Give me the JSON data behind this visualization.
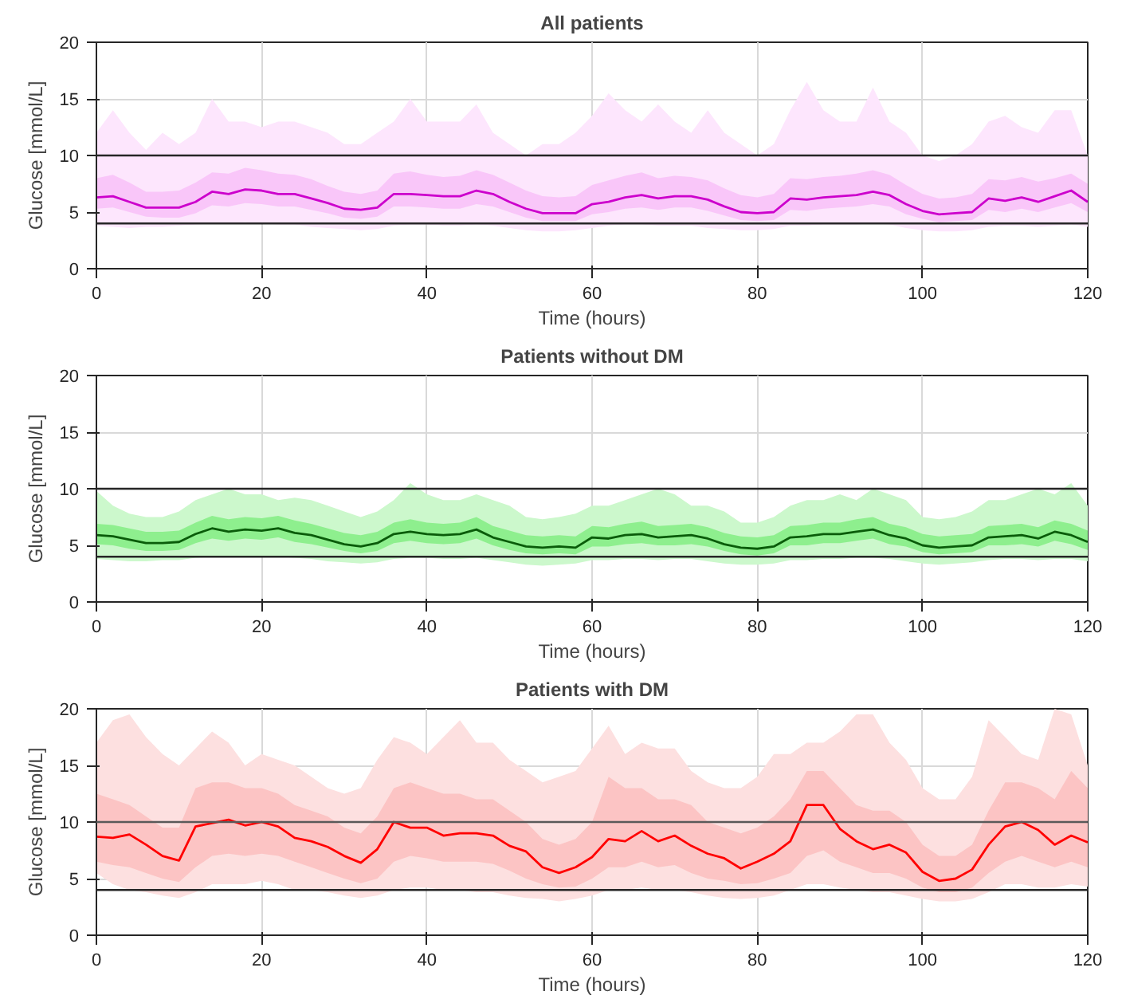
{
  "chart_data": [
    {
      "type": "line",
      "title": "All patients",
      "xlabel": "Time (hours)",
      "ylabel": "Glucose [mmol/L]",
      "xlim": [
        0,
        120
      ],
      "ylim": [
        0,
        20
      ],
      "xticks": [
        0,
        20,
        40,
        60,
        80,
        100,
        120
      ],
      "yticks": [
        0,
        5,
        10,
        15,
        20
      ],
      "grid": true,
      "x": [
        0,
        2,
        4,
        6,
        8,
        10,
        12,
        14,
        16,
        18,
        20,
        22,
        24,
        26,
        28,
        30,
        32,
        34,
        36,
        38,
        40,
        42,
        44,
        46,
        48,
        50,
        52,
        54,
        56,
        58,
        60,
        62,
        64,
        66,
        68,
        70,
        72,
        74,
        76,
        78,
        80,
        82,
        84,
        86,
        88,
        90,
        92,
        94,
        96,
        98,
        100,
        102,
        104,
        106,
        108,
        110,
        112,
        114,
        116,
        118,
        120
      ],
      "ref_lines": [
        {
          "axis": "y",
          "value": 4,
          "color": "#262626"
        },
        {
          "axis": "y",
          "value": 10,
          "color": "#262626"
        }
      ],
      "series": [
        {
          "color": "#fde6fd",
          "values": [
            null,
            null,
            null,
            null,
            null,
            null,
            null,
            null,
            null,
            null,
            null,
            null,
            null,
            null,
            null,
            null,
            null,
            null,
            null,
            null,
            null,
            null,
            null,
            null,
            null,
            null,
            null,
            null,
            null,
            null,
            null,
            null,
            null,
            null,
            null,
            null,
            null,
            null,
            null,
            null,
            null,
            null,
            null,
            null,
            null,
            null,
            null,
            null,
            null,
            null,
            null,
            null,
            null,
            null,
            null,
            null,
            null,
            null,
            null,
            null,
            null
          ],
          "lower": [
            3.8,
            3.7,
            3.6,
            3.7,
            3.7,
            3.8,
            3.9,
            4.0,
            4.0,
            4.1,
            4.0,
            3.9,
            3.9,
            3.7,
            3.6,
            3.5,
            3.4,
            3.5,
            3.8,
            3.9,
            3.9,
            3.8,
            3.8,
            3.9,
            3.8,
            3.6,
            3.4,
            3.3,
            3.3,
            3.4,
            3.6,
            3.8,
            3.9,
            3.9,
            3.8,
            3.8,
            3.8,
            3.6,
            3.5,
            3.4,
            3.4,
            3.5,
            3.8,
            3.8,
            3.9,
            3.9,
            3.9,
            4.0,
            3.9,
            3.6,
            3.4,
            3.3,
            3.3,
            3.4,
            3.7,
            3.8,
            3.8,
            3.7,
            3.8,
            3.9,
            3.7
          ],
          "upper": [
            12,
            14,
            12,
            10.5,
            12,
            11,
            12,
            15,
            13,
            13,
            12.5,
            13,
            13,
            12.5,
            12,
            11,
            11,
            12,
            13,
            15,
            13,
            13,
            13,
            14.5,
            12,
            11,
            10,
            11,
            11,
            12,
            13.5,
            15.5,
            14,
            13,
            14.5,
            13,
            12,
            14,
            12,
            11,
            10,
            11,
            14,
            16.5,
            14,
            13,
            13,
            16,
            13,
            12,
            10,
            9.5,
            10,
            11,
            13,
            13.5,
            12.5,
            12,
            14,
            14,
            10
          ]
        },
        {
          "color": "#f9c6f9",
          "values": [
            null,
            null,
            null,
            null,
            null,
            null,
            null,
            null,
            null,
            null,
            null,
            null,
            null,
            null,
            null,
            null,
            null,
            null,
            null,
            null,
            null,
            null,
            null,
            null,
            null,
            null,
            null,
            null,
            null,
            null,
            null,
            null,
            null,
            null,
            null,
            null,
            null,
            null,
            null,
            null,
            null,
            null,
            null,
            null,
            null,
            null,
            null,
            null,
            null,
            null,
            null,
            null,
            null,
            null,
            null,
            null,
            null,
            null,
            null,
            null,
            null
          ],
          "lower": [
            5.3,
            5.4,
            5.0,
            4.6,
            4.5,
            4.5,
            4.9,
            5.6,
            5.5,
            5.8,
            5.7,
            5.5,
            5.5,
            5.2,
            4.9,
            4.5,
            4.4,
            4.6,
            5.5,
            5.5,
            5.4,
            5.3,
            5.3,
            5.7,
            5.5,
            5.0,
            4.5,
            4.2,
            4.2,
            4.2,
            4.8,
            5.0,
            5.3,
            5.4,
            5.2,
            5.4,
            5.4,
            5.1,
            4.7,
            4.3,
            4.2,
            4.3,
            5.2,
            5.1,
            5.3,
            5.4,
            5.5,
            5.7,
            5.5,
            4.8,
            4.4,
            4.1,
            4.2,
            4.3,
            5.2,
            5.0,
            5.3,
            5.0,
            5.4,
            5.8,
            5.0
          ],
          "upper": [
            8.0,
            8.3,
            7.6,
            6.8,
            6.8,
            6.9,
            7.6,
            8.5,
            8.4,
            8.9,
            8.7,
            8.4,
            8.3,
            7.9,
            7.3,
            6.8,
            6.6,
            6.9,
            8.4,
            8.6,
            8.3,
            8.1,
            8.2,
            8.7,
            8.3,
            7.6,
            6.9,
            6.4,
            6.3,
            6.4,
            7.4,
            7.8,
            8.2,
            8.5,
            8.0,
            8.2,
            8.1,
            7.8,
            7.1,
            6.5,
            6.3,
            6.6,
            8.0,
            7.9,
            8.1,
            8.2,
            8.4,
            8.7,
            8.3,
            7.4,
            6.6,
            6.2,
            6.3,
            6.6,
            7.9,
            7.8,
            8.1,
            7.7,
            8.0,
            8.4,
            7.5
          ]
        },
        {
          "color": "#cc00cc",
          "values": [
            6.3,
            6.4,
            5.9,
            5.4,
            5.4,
            5.4,
            5.9,
            6.8,
            6.6,
            7.0,
            6.9,
            6.6,
            6.6,
            6.2,
            5.8,
            5.3,
            5.2,
            5.4,
            6.6,
            6.6,
            6.5,
            6.4,
            6.4,
            6.9,
            6.6,
            5.9,
            5.3,
            4.9,
            4.9,
            4.9,
            5.7,
            5.9,
            6.3,
            6.5,
            6.2,
            6.4,
            6.4,
            6.1,
            5.5,
            5.0,
            4.9,
            5.0,
            6.2,
            6.1,
            6.3,
            6.4,
            6.5,
            6.8,
            6.5,
            5.7,
            5.1,
            4.8,
            4.9,
            5.0,
            6.2,
            6.0,
            6.3,
            5.9,
            6.4,
            6.9,
            5.9
          ]
        }
      ]
    },
    {
      "type": "line",
      "title": "Patients without DM",
      "xlabel": "Time (hours)",
      "ylabel": "Glucose [mmol/L]",
      "xlim": [
        0,
        120
      ],
      "ylim": [
        0,
        20
      ],
      "xticks": [
        0,
        20,
        40,
        60,
        80,
        100,
        120
      ],
      "yticks": [
        0,
        5,
        10,
        15,
        20
      ],
      "grid": true,
      "x": [
        0,
        2,
        4,
        6,
        8,
        10,
        12,
        14,
        16,
        18,
        20,
        22,
        24,
        26,
        28,
        30,
        32,
        34,
        36,
        38,
        40,
        42,
        44,
        46,
        48,
        50,
        52,
        54,
        56,
        58,
        60,
        62,
        64,
        66,
        68,
        70,
        72,
        74,
        76,
        78,
        80,
        82,
        84,
        86,
        88,
        90,
        92,
        94,
        96,
        98,
        100,
        102,
        104,
        106,
        108,
        110,
        112,
        114,
        116,
        118,
        120
      ],
      "ref_lines": [
        {
          "axis": "y",
          "value": 4,
          "color": "#262626"
        },
        {
          "axis": "y",
          "value": 10,
          "color": "#262626"
        }
      ],
      "series": [
        {
          "color": "#ccf8cc",
          "values": [
            null,
            null,
            null,
            null,
            null,
            null,
            null,
            null,
            null,
            null,
            null,
            null,
            null,
            null,
            null,
            null,
            null,
            null,
            null,
            null,
            null,
            null,
            null,
            null,
            null,
            null,
            null,
            null,
            null,
            null,
            null,
            null,
            null,
            null,
            null,
            null,
            null,
            null,
            null,
            null,
            null,
            null,
            null,
            null,
            null,
            null,
            null,
            null,
            null,
            null,
            null,
            null,
            null,
            null,
            null,
            null,
            null,
            null,
            null,
            null,
            null
          ],
          "lower": [
            3.8,
            3.7,
            3.6,
            3.6,
            3.7,
            3.7,
            3.9,
            4.0,
            4.0,
            4.0,
            4.0,
            4.0,
            3.9,
            3.8,
            3.6,
            3.5,
            3.4,
            3.5,
            3.8,
            3.9,
            3.9,
            3.8,
            3.8,
            3.9,
            3.7,
            3.5,
            3.3,
            3.2,
            3.3,
            3.4,
            3.7,
            3.7,
            3.8,
            3.8,
            3.7,
            3.8,
            3.8,
            3.6,
            3.4,
            3.3,
            3.3,
            3.4,
            3.7,
            3.7,
            3.8,
            3.8,
            3.9,
            3.9,
            3.8,
            3.6,
            3.4,
            3.3,
            3.4,
            3.5,
            3.7,
            3.8,
            3.8,
            3.7,
            3.8,
            3.8,
            3.6
          ],
          "upper": [
            9.8,
            8.5,
            7.8,
            7.5,
            7.5,
            8.0,
            9.0,
            9.5,
            10.0,
            9.5,
            9.5,
            9.0,
            9.2,
            9.0,
            8.5,
            8.0,
            7.5,
            8.0,
            9.0,
            10.5,
            9.5,
            9.0,
            9.0,
            9.5,
            9.0,
            8.5,
            7.5,
            7.3,
            7.5,
            7.8,
            8.5,
            8.5,
            9.0,
            9.5,
            10.0,
            9.5,
            8.5,
            8.5,
            8.0,
            7.0,
            7.0,
            7.5,
            8.5,
            9.0,
            9.0,
            9.5,
            9.0,
            10.0,
            9.5,
            9.0,
            7.5,
            7.3,
            7.5,
            8.0,
            9.0,
            9.0,
            9.5,
            10.0,
            9.5,
            10.5,
            8.5
          ]
        },
        {
          "color": "#8eef8e",
          "values": [
            null,
            null,
            null,
            null,
            null,
            null,
            null,
            null,
            null,
            null,
            null,
            null,
            null,
            null,
            null,
            null,
            null,
            null,
            null,
            null,
            null,
            null,
            null,
            null,
            null,
            null,
            null,
            null,
            null,
            null,
            null,
            null,
            null,
            null,
            null,
            null,
            null,
            null,
            null,
            null,
            null,
            null,
            null,
            null,
            null,
            null,
            null,
            null,
            null,
            null,
            null,
            null,
            null,
            null,
            null,
            null,
            null,
            null,
            null,
            null,
            null
          ],
          "lower": [
            5.1,
            5.0,
            4.7,
            4.5,
            4.5,
            4.6,
            5.2,
            5.6,
            5.4,
            5.6,
            5.5,
            5.7,
            5.3,
            5.1,
            4.8,
            4.5,
            4.3,
            4.5,
            5.2,
            5.4,
            5.2,
            5.1,
            5.2,
            5.6,
            5.0,
            4.6,
            4.3,
            4.2,
            4.3,
            4.2,
            4.9,
            4.9,
            5.1,
            5.2,
            5.0,
            5.0,
            5.1,
            4.9,
            4.5,
            4.2,
            4.1,
            4.3,
            5.0,
            5.0,
            5.2,
            5.2,
            5.4,
            5.6,
            5.1,
            4.9,
            4.4,
            4.2,
            4.3,
            4.4,
            5.0,
            5.0,
            5.1,
            4.9,
            5.4,
            5.1,
            4.6
          ],
          "upper": [
            6.9,
            6.8,
            6.5,
            6.2,
            6.2,
            6.3,
            7.0,
            7.6,
            7.3,
            7.5,
            7.4,
            7.6,
            7.2,
            6.9,
            6.5,
            6.1,
            5.9,
            6.2,
            7.0,
            7.3,
            7.0,
            6.9,
            7.0,
            7.5,
            6.7,
            6.3,
            5.9,
            5.8,
            5.9,
            5.8,
            6.7,
            6.6,
            6.9,
            7.1,
            6.7,
            6.8,
            6.9,
            6.6,
            6.1,
            5.8,
            5.7,
            5.9,
            6.7,
            6.8,
            7.0,
            7.0,
            7.3,
            7.5,
            6.9,
            6.6,
            6.0,
            5.8,
            5.9,
            6.0,
            6.7,
            6.8,
            6.9,
            6.6,
            7.2,
            6.9,
            6.3
          ]
        },
        {
          "color": "#0a5c0a",
          "values": [
            5.9,
            5.8,
            5.5,
            5.2,
            5.2,
            5.3,
            6.0,
            6.5,
            6.2,
            6.4,
            6.3,
            6.5,
            6.1,
            5.9,
            5.5,
            5.1,
            4.9,
            5.2,
            6.0,
            6.2,
            6.0,
            5.9,
            6.0,
            6.4,
            5.7,
            5.3,
            4.9,
            4.8,
            4.9,
            4.8,
            5.7,
            5.6,
            5.9,
            6.0,
            5.7,
            5.8,
            5.9,
            5.6,
            5.1,
            4.8,
            4.7,
            4.9,
            5.7,
            5.8,
            6.0,
            6.0,
            6.2,
            6.4,
            5.9,
            5.6,
            5.0,
            4.8,
            4.9,
            5.0,
            5.7,
            5.8,
            5.9,
            5.6,
            6.2,
            5.9,
            5.3
          ]
        }
      ]
    },
    {
      "type": "line",
      "title": "Patients with DM",
      "xlabel": "Time (hours)",
      "ylabel": "Glucose [mmol/L]",
      "xlim": [
        0,
        120
      ],
      "ylim": [
        0,
        20
      ],
      "xticks": [
        0,
        20,
        40,
        60,
        80,
        100,
        120
      ],
      "yticks": [
        0,
        5,
        10,
        15,
        20
      ],
      "grid": true,
      "x": [
        0,
        2,
        4,
        6,
        8,
        10,
        12,
        14,
        16,
        18,
        20,
        22,
        24,
        26,
        28,
        30,
        32,
        34,
        36,
        38,
        40,
        42,
        44,
        46,
        48,
        50,
        52,
        54,
        56,
        58,
        60,
        62,
        64,
        66,
        68,
        70,
        72,
        74,
        76,
        78,
        80,
        82,
        84,
        86,
        88,
        90,
        92,
        94,
        96,
        98,
        100,
        102,
        104,
        106,
        108,
        110,
        112,
        114,
        116,
        118,
        120
      ],
      "ref_lines": [
        {
          "axis": "y",
          "value": 4,
          "color": "#262626"
        },
        {
          "axis": "y",
          "value": 10,
          "color": "#595959"
        }
      ],
      "series": [
        {
          "color": "#fde0e0",
          "values": [
            null,
            null,
            null,
            null,
            null,
            null,
            null,
            null,
            null,
            null,
            null,
            null,
            null,
            null,
            null,
            null,
            null,
            null,
            null,
            null,
            null,
            null,
            null,
            null,
            null,
            null,
            null,
            null,
            null,
            null,
            null,
            null,
            null,
            null,
            null,
            null,
            null,
            null,
            null,
            null,
            null,
            null,
            null,
            null,
            null,
            null,
            null,
            null,
            null,
            null,
            null,
            null,
            null,
            null,
            null,
            null,
            null,
            null,
            null,
            null,
            null
          ],
          "lower": [
            5.5,
            4.5,
            4.0,
            3.8,
            3.5,
            3.3,
            3.8,
            4.5,
            4.5,
            4.5,
            4.8,
            4.5,
            4.0,
            4.0,
            3.8,
            3.5,
            3.3,
            3.5,
            4.0,
            4.2,
            4.2,
            4.0,
            4.0,
            3.8,
            3.8,
            3.5,
            3.3,
            3.2,
            3.0,
            3.2,
            3.5,
            4.0,
            4.0,
            4.2,
            4.0,
            4.0,
            3.8,
            3.5,
            3.3,
            3.2,
            3.3,
            3.5,
            4.0,
            4.5,
            4.5,
            4.2,
            4.0,
            3.8,
            3.8,
            3.5,
            3.2,
            3.0,
            3.0,
            3.2,
            3.8,
            4.5,
            4.5,
            4.2,
            4.2,
            4.5,
            4.3
          ],
          "upper": [
            17.0,
            19.0,
            19.5,
            17.5,
            16.0,
            15.0,
            16.5,
            18.0,
            17.0,
            15.0,
            16.0,
            15.5,
            15.0,
            14.0,
            13.0,
            12.5,
            13.0,
            15.5,
            17.5,
            17.0,
            16.0,
            17.5,
            19.0,
            17.0,
            17.0,
            15.5,
            14.5,
            13.5,
            14.0,
            14.5,
            16.5,
            18.5,
            16.0,
            17.0,
            16.5,
            16.5,
            14.5,
            13.5,
            13.0,
            13.0,
            14.0,
            16.0,
            16.0,
            17.0,
            17.0,
            18.0,
            19.5,
            19.5,
            17.0,
            15.5,
            13.0,
            12.0,
            12.0,
            14.0,
            19.0,
            17.5,
            16.0,
            15.5,
            20.0,
            19.5,
            15.0
          ]
        },
        {
          "color": "#fcc4c4",
          "values": [
            null,
            null,
            null,
            null,
            null,
            null,
            null,
            null,
            null,
            null,
            null,
            null,
            null,
            null,
            null,
            null,
            null,
            null,
            null,
            null,
            null,
            null,
            null,
            null,
            null,
            null,
            null,
            null,
            null,
            null,
            null,
            null,
            null,
            null,
            null,
            null,
            null,
            null,
            null,
            null,
            null,
            null,
            null,
            null,
            null,
            null,
            null,
            null,
            null,
            null,
            null,
            null,
            null,
            null,
            null,
            null,
            null,
            null,
            null,
            null,
            null
          ],
          "lower": [
            6.5,
            6.2,
            6.0,
            5.5,
            5.0,
            4.7,
            6.0,
            7.0,
            7.2,
            7.0,
            7.2,
            7.0,
            6.5,
            6.0,
            5.5,
            5.0,
            4.6,
            5.0,
            6.5,
            7.0,
            6.8,
            6.5,
            6.5,
            6.5,
            6.3,
            5.7,
            5.0,
            4.5,
            4.2,
            4.3,
            5.0,
            6.0,
            6.0,
            6.5,
            6.0,
            6.2,
            5.5,
            5.0,
            4.8,
            4.5,
            4.6,
            5.0,
            5.5,
            7.0,
            7.5,
            6.5,
            6.0,
            5.5,
            5.5,
            5.0,
            4.2,
            3.8,
            3.8,
            4.2,
            5.5,
            6.5,
            7.0,
            6.5,
            6.0,
            6.5,
            6.0
          ],
          "upper": [
            12.5,
            12.0,
            11.5,
            10.5,
            9.5,
            9.5,
            13.0,
            13.5,
            13.5,
            13.0,
            13.0,
            12.5,
            11.5,
            11.0,
            10.5,
            9.5,
            9.0,
            10.5,
            13.0,
            13.5,
            13.0,
            12.5,
            12.5,
            12.0,
            12.0,
            11.0,
            10.0,
            8.5,
            8.0,
            8.5,
            10.0,
            14.0,
            13.0,
            13.0,
            12.0,
            12.0,
            11.5,
            10.0,
            9.5,
            9.0,
            9.5,
            10.5,
            12.0,
            14.5,
            14.5,
            13.0,
            11.5,
            11.0,
            11.0,
            10.0,
            8.0,
            7.0,
            7.0,
            8.0,
            11.0,
            13.5,
            13.5,
            13.0,
            12.0,
            14.5,
            13.0
          ]
        },
        {
          "color": "#ff0000",
          "values": [
            8.7,
            8.6,
            8.9,
            8.0,
            7.0,
            6.6,
            9.6,
            9.9,
            10.2,
            9.7,
            10.0,
            9.6,
            8.6,
            8.3,
            7.8,
            7.0,
            6.4,
            7.6,
            10.0,
            9.5,
            9.5,
            8.8,
            9.0,
            9.0,
            8.8,
            7.9,
            7.4,
            6.0,
            5.5,
            6.0,
            6.9,
            8.5,
            8.3,
            9.2,
            8.3,
            8.8,
            7.9,
            7.2,
            6.8,
            5.9,
            6.5,
            7.2,
            8.3,
            11.5,
            11.5,
            9.4,
            8.3,
            7.6,
            8.0,
            7.3,
            5.6,
            4.8,
            5.0,
            5.8,
            8.0,
            9.6,
            10.0,
            9.3,
            8.0,
            8.8,
            8.2
          ]
        }
      ]
    }
  ]
}
